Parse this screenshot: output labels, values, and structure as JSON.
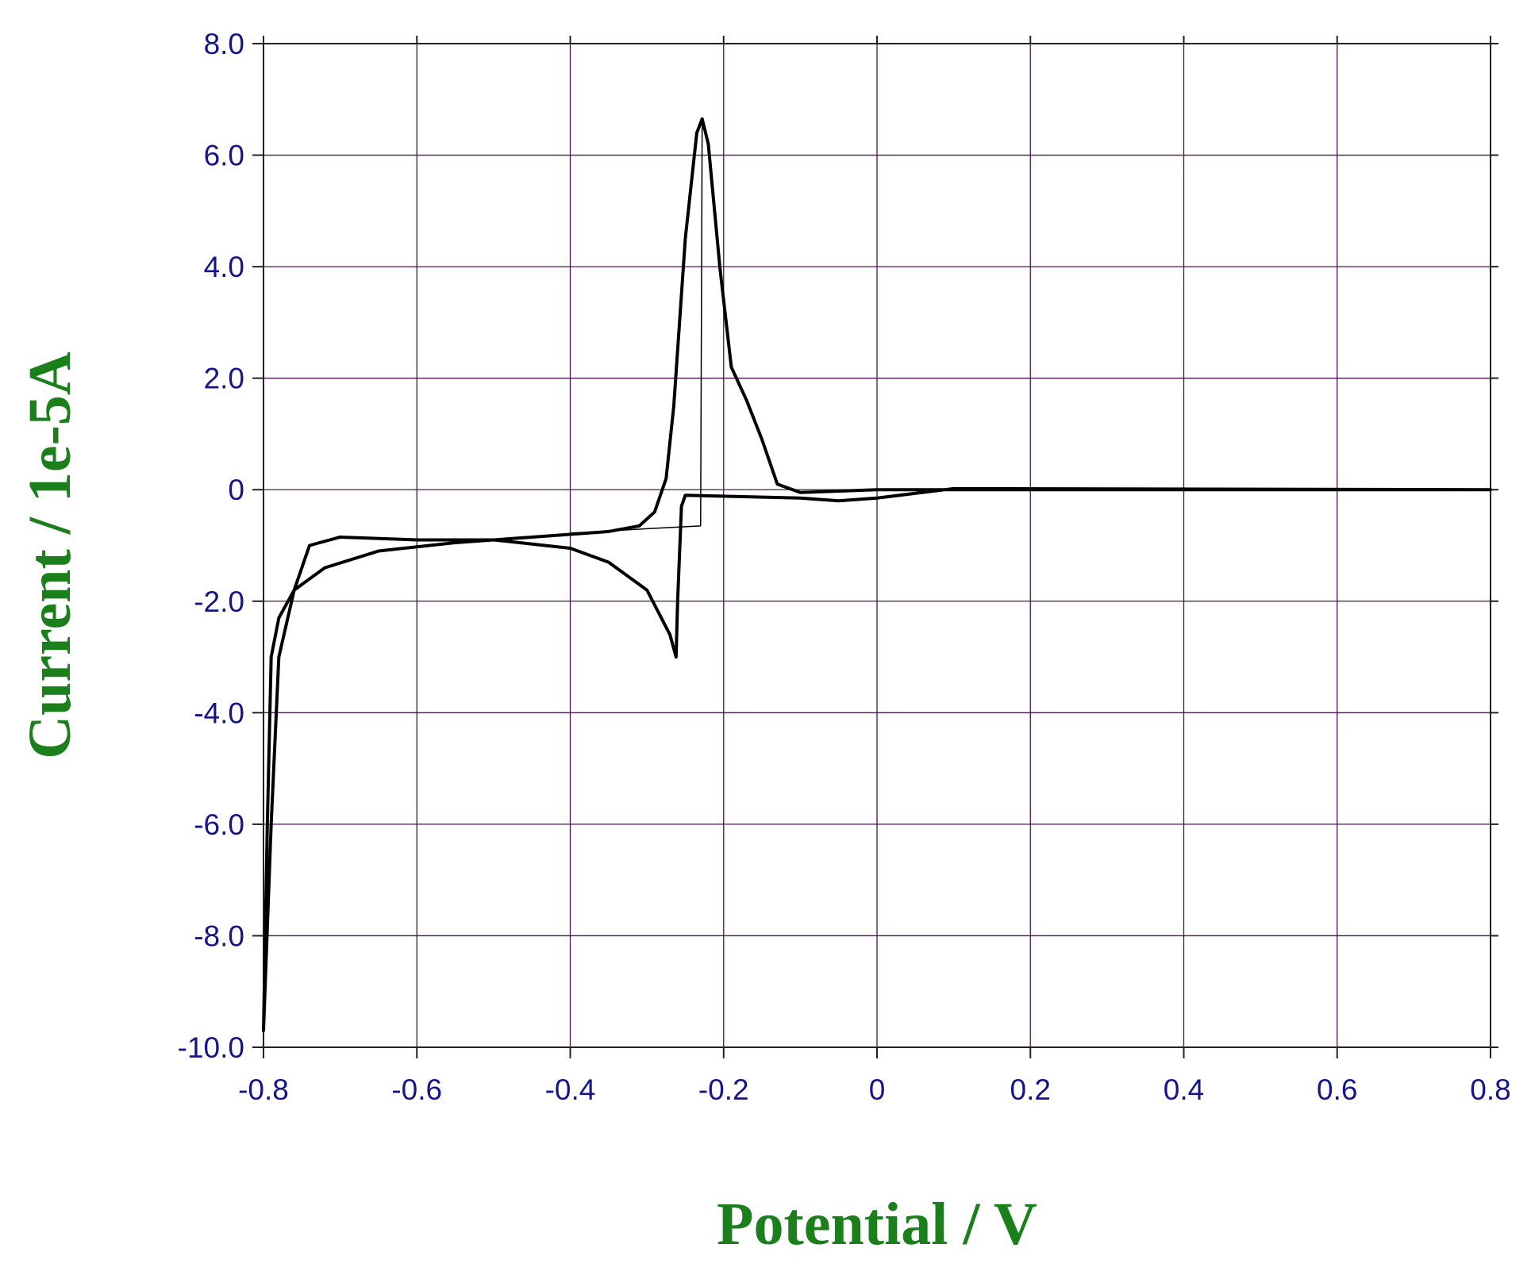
{
  "chart_data": {
    "type": "line",
    "x_label": "Potential / V",
    "y_label": "Current / 1e-5A",
    "xlim": [
      -0.8,
      0.8
    ],
    "ylim": [
      -10,
      8
    ],
    "xticks": [
      -0.8,
      -0.6,
      -0.4,
      -0.2,
      0,
      0.2,
      0.4,
      0.6,
      0.8
    ],
    "yticks": [
      {
        "value": 8,
        "label": "8.0"
      },
      {
        "value": 6,
        "label": "6.0"
      },
      {
        "value": 4,
        "label": "4.0"
      },
      {
        "value": 2,
        "label": "2.0"
      },
      0,
      {
        "value": -2,
        "label": "-2.0"
      },
      {
        "value": -4,
        "label": "-4.0"
      },
      {
        "value": -6,
        "label": "-6.0"
      },
      {
        "value": -8,
        "label": "-8.0"
      },
      {
        "value": -10,
        "label": "-10.0"
      }
    ],
    "grid": true,
    "series": [
      {
        "color": "#000000",
        "x": [
          0.8,
          0.1,
          0.0,
          -0.05,
          -0.1,
          -0.25,
          -0.255,
          -0.26,
          -0.262,
          -0.27,
          -0.3,
          -0.35,
          -0.4,
          -0.5,
          -0.6,
          -0.7,
          -0.74,
          -0.76,
          -0.78,
          -0.79,
          -0.8,
          -0.795,
          -0.79,
          -0.78,
          -0.76,
          -0.72,
          -0.65,
          -0.55,
          -0.45,
          -0.35,
          -0.31,
          -0.29,
          -0.275,
          -0.265,
          -0.25,
          -0.235,
          -0.228,
          -0.22,
          -0.205,
          -0.19,
          -0.17,
          -0.15,
          -0.13,
          -0.1,
          0.0,
          0.8
        ],
        "values": [
          0,
          0.02,
          -0.15,
          -0.2,
          -0.15,
          -0.1,
          -0.3,
          -2.0,
          -3.0,
          -2.6,
          -1.8,
          -1.3,
          -1.05,
          -0.9,
          -0.9,
          -0.85,
          -1.0,
          -1.8,
          -3.0,
          -6.0,
          -9.7,
          -6.0,
          -3.0,
          -2.3,
          -1.8,
          -1.4,
          -1.1,
          -0.95,
          -0.85,
          -0.75,
          -0.65,
          -0.4,
          0.2,
          1.5,
          4.5,
          6.4,
          6.65,
          6.2,
          4.0,
          2.2,
          1.6,
          0.9,
          0.1,
          -0.05,
          0,
          0
        ]
      },
      {
        "color": "#000000",
        "x": [
          -0.4,
          -0.3,
          -0.23,
          -0.228
        ],
        "values": [
          -0.78,
          -0.7,
          -0.65,
          6.6
        ]
      }
    ]
  }
}
